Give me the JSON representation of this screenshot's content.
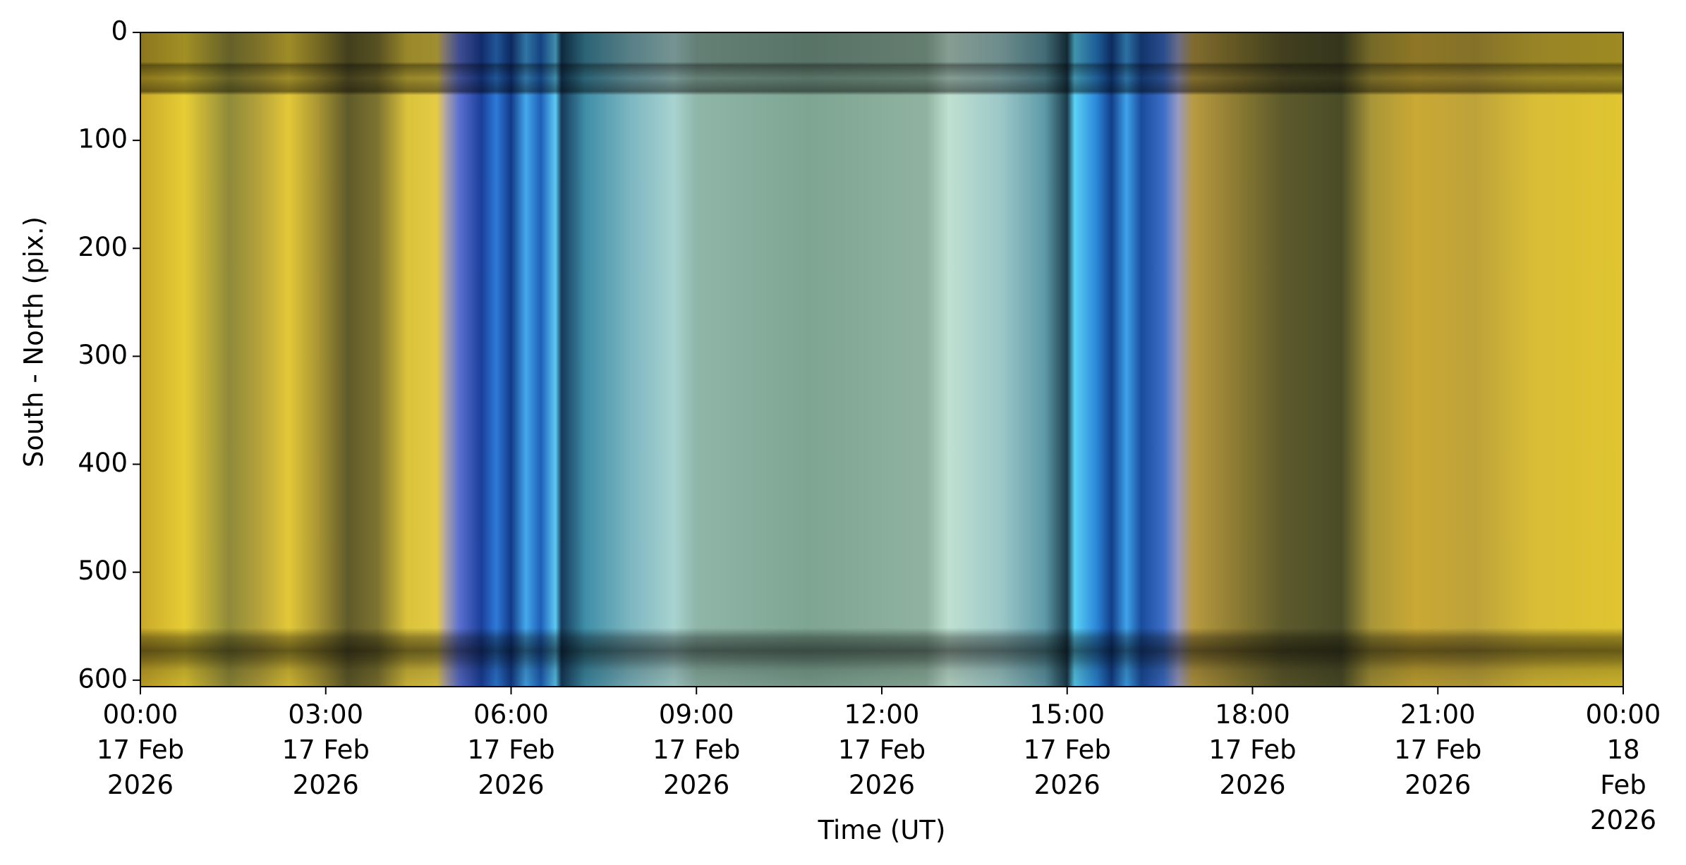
{
  "chart_data": {
    "type": "keogram",
    "xlabel": "Time (UT)",
    "ylabel": "South - North (pix.)",
    "xlim": [
      0,
      24
    ],
    "xticks": [
      {
        "value": 0,
        "label": "00:00\n17 Feb\n2026"
      },
      {
        "value": 3,
        "label": "03:00\n17 Feb\n2026"
      },
      {
        "value": 6,
        "label": "06:00\n17 Feb\n2026"
      },
      {
        "value": 9,
        "label": "09:00\n17 Feb\n2026"
      },
      {
        "value": 12,
        "label": "12:00\n17 Feb\n2026"
      },
      {
        "value": 15,
        "label": "15:00\n17 Feb\n2026"
      },
      {
        "value": 18,
        "label": "18:00\n17 Feb\n2026"
      },
      {
        "value": 21,
        "label": "21:00\n17 Feb\n2026"
      },
      {
        "value": 24,
        "label": "00:00\n18 Feb\n2026"
      }
    ],
    "ylim": [
      606,
      0
    ],
    "yticks": [
      0,
      100,
      200,
      300,
      400,
      500,
      600
    ]
  }
}
